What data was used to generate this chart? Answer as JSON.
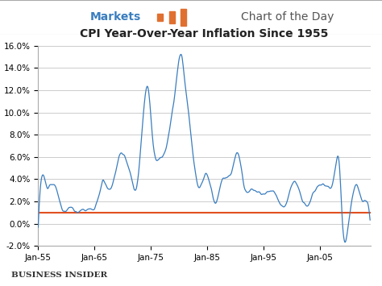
{
  "title": "CPI Year-Over-Year Inflation Since 1955",
  "header_left": "Markets",
  "header_right": "Chart of the Day",
  "ylabel_ticks": [
    "-2.0%",
    "0.0%",
    "2.0%",
    "4.0%",
    "6.0%",
    "8.0%",
    "10.0%",
    "12.0%",
    "14.0%",
    "16.0%"
  ],
  "ytick_vals": [
    -2.0,
    0.0,
    2.0,
    4.0,
    6.0,
    8.0,
    10.0,
    12.0,
    14.0,
    16.0
  ],
  "xtick_labels": [
    "Jan-55",
    "Jan-65",
    "Jan-75",
    "Jan-85",
    "Jan-95",
    "Jan-05"
  ],
  "xtick_years": [
    1955,
    1965,
    1975,
    1985,
    1995,
    2005
  ],
  "reference_line_y": 1.0,
  "line_color": "#3a7dbf",
  "reference_line_color": "#e05020",
  "background_color": "#ffffff",
  "grid_color": "#cccccc",
  "footer_text": "BUSINESS INSIDER",
  "title_fontsize": 11,
  "header_bg_color": "#f0f0f0"
}
